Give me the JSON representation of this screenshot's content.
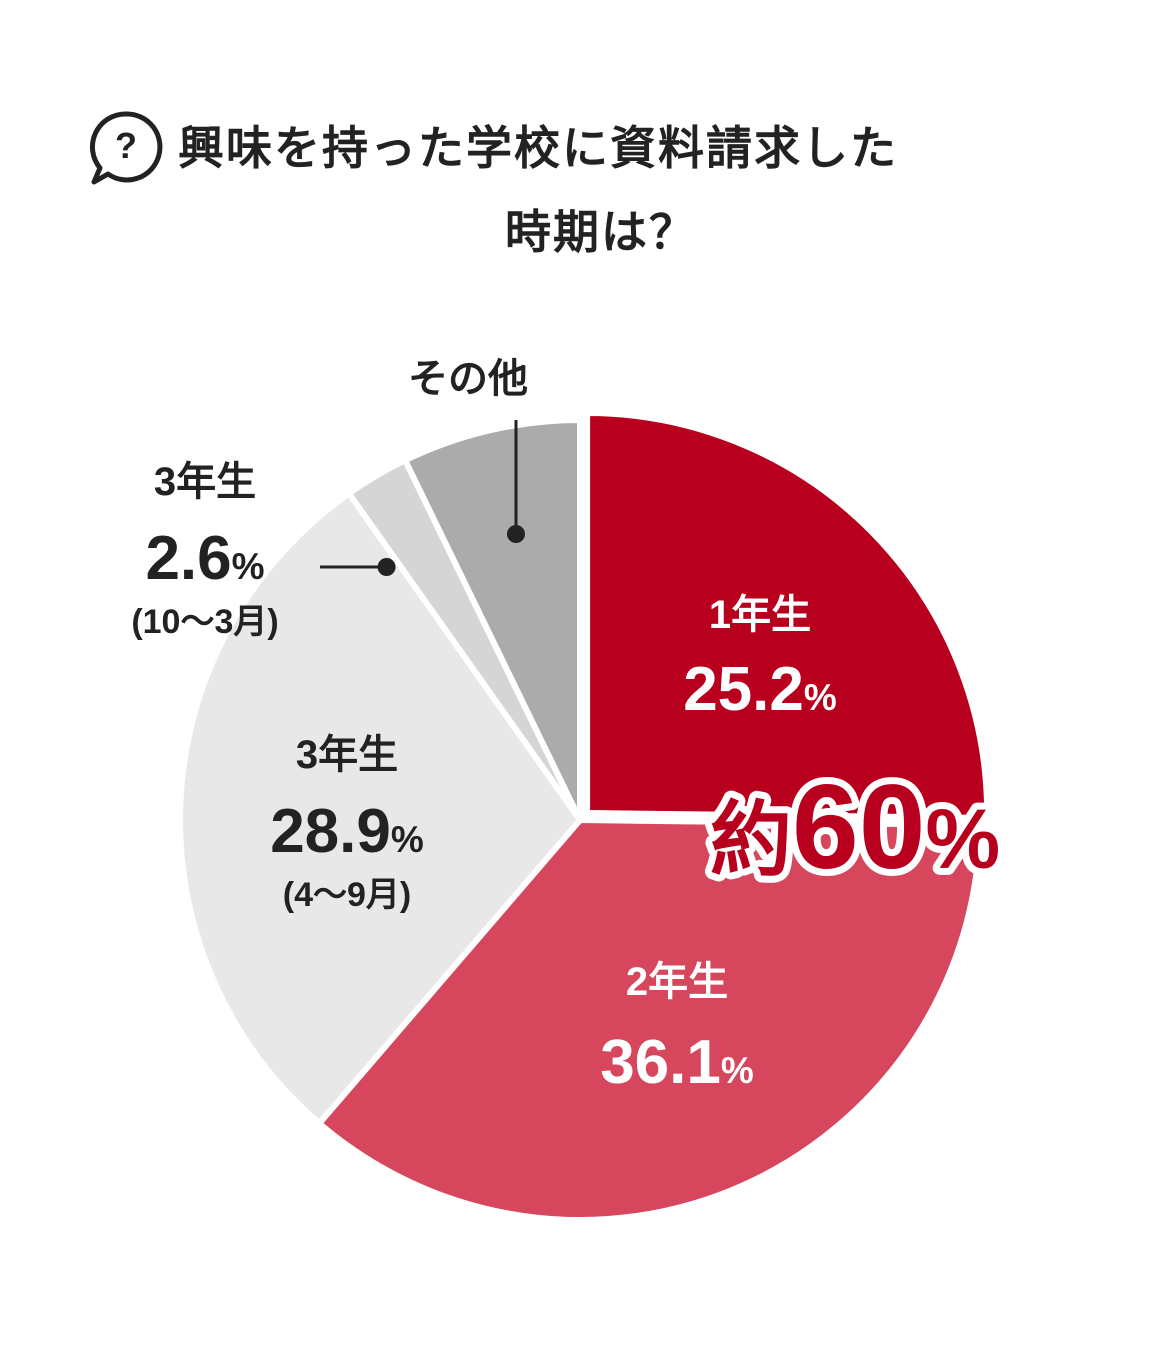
{
  "title": {
    "line1": "興味を持った学校に資料請求した",
    "line2": "時期は？"
  },
  "chart_data": {
    "type": "pie",
    "start_angle_deg": 0,
    "direction": "clockwise",
    "slices": [
      {
        "key": "y1",
        "label": "1年生",
        "value": 25.2,
        "value_text": "25.2",
        "note": "",
        "color": "#b8001e"
      },
      {
        "key": "y2",
        "label": "2年生",
        "value": 36.1,
        "value_text": "36.1",
        "note": "",
        "color": "#d6465c"
      },
      {
        "key": "y3a",
        "label": "3年生",
        "value": 28.9,
        "value_text": "28.9",
        "note": "(4〜9月)",
        "color": "#e8e8e8"
      },
      {
        "key": "y3b",
        "label": "3年生",
        "value": 2.6,
        "value_text": "2.6",
        "note": "(10〜3月)",
        "color": "#d5d5d5"
      },
      {
        "key": "other",
        "label": "その他",
        "value": 7.2,
        "value_text": "",
        "note": "",
        "color": "#ababab"
      }
    ],
    "highlight": {
      "text_prefix": "約",
      "text_number": "60",
      "text_unit": "%",
      "color": "#b8001e"
    },
    "percent_sign": "%"
  },
  "colors": {
    "text": "#222222",
    "accent": "#b8001e"
  },
  "icons": {
    "title_icon": "question-bubble-icon"
  }
}
